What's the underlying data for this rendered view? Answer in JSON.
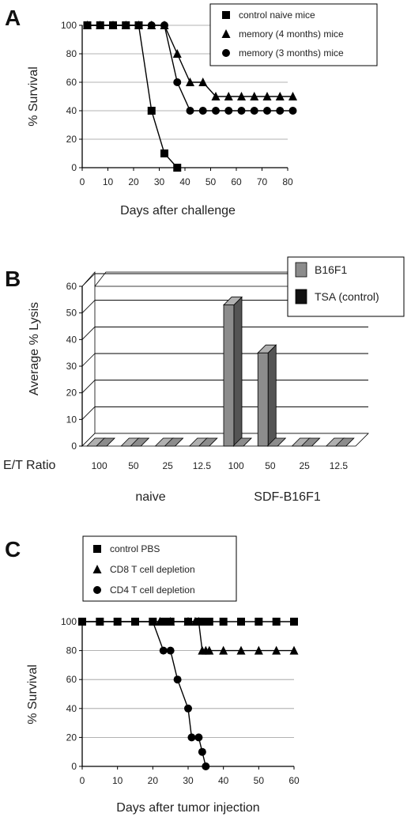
{
  "chart_data": [
    {
      "panel": "A",
      "type": "line",
      "xlabel": "Days after challenge",
      "ylabel": "% Survival",
      "xlim": [
        0,
        80
      ],
      "ylim": [
        0,
        100
      ],
      "xticks": [
        0,
        10,
        20,
        30,
        40,
        50,
        60,
        70,
        80
      ],
      "yticks": [
        0,
        20,
        40,
        60,
        80,
        100
      ],
      "legend_position": "top-right",
      "series": [
        {
          "name": "control naive mice",
          "marker": "square",
          "x": [
            2,
            7,
            12,
            17,
            22,
            27,
            32,
            37
          ],
          "y": [
            100,
            100,
            100,
            100,
            100,
            40,
            10,
            0
          ]
        },
        {
          "name": "memory (4 months) mice",
          "marker": "triangle",
          "x": [
            2,
            7,
            12,
            17,
            22,
            27,
            32,
            37,
            42,
            47,
            52,
            57,
            62,
            67,
            72,
            77,
            82
          ],
          "y": [
            100,
            100,
            100,
            100,
            100,
            100,
            100,
            80,
            60,
            60,
            50,
            50,
            50,
            50,
            50,
            50,
            50
          ]
        },
        {
          "name": "memory (3 months) mice",
          "marker": "circle",
          "x": [
            2,
            7,
            12,
            17,
            22,
            27,
            32,
            37,
            42,
            47,
            52,
            57,
            62,
            67,
            72,
            77,
            82
          ],
          "y": [
            100,
            100,
            100,
            100,
            100,
            100,
            100,
            60,
            40,
            40,
            40,
            40,
            40,
            40,
            40,
            40,
            40
          ]
        }
      ]
    },
    {
      "panel": "B",
      "type": "bar",
      "ylabel": "Average % Lysis",
      "xlabel": "E/T Ratio",
      "ylim": [
        0,
        60
      ],
      "yticks": [
        0,
        10,
        20,
        30,
        40,
        50,
        60
      ],
      "categories": [
        "100",
        "50",
        "25",
        "12.5",
        "100",
        "50",
        "25",
        "12.5"
      ],
      "groups": [
        {
          "label": "naive",
          "span": [
            0,
            3
          ]
        },
        {
          "label": "SDF-B16F1",
          "span": [
            4,
            7
          ]
        }
      ],
      "legend_position": "top-right",
      "series": [
        {
          "name": "B16F1",
          "color": "#8c8c8c",
          "values": [
            0,
            0,
            0,
            0,
            53,
            35,
            0,
            0
          ]
        },
        {
          "name": "TSA (control)",
          "color": "#111111",
          "values": [
            0,
            0,
            0,
            0,
            0,
            0,
            0,
            0
          ]
        }
      ]
    },
    {
      "panel": "C",
      "type": "line",
      "xlabel": "Days after tumor injection",
      "ylabel": "% Survival",
      "xlim": [
        0,
        60
      ],
      "ylim": [
        0,
        100
      ],
      "xticks": [
        0,
        10,
        20,
        30,
        40,
        50,
        60
      ],
      "yticks": [
        0,
        20,
        40,
        60,
        80,
        100
      ],
      "legend_position": "top",
      "series": [
        {
          "name": "control PBS",
          "marker": "square",
          "x": [
            0,
            5,
            10,
            15,
            20,
            23,
            25,
            30,
            33,
            35,
            36,
            40,
            45,
            50,
            55,
            60
          ],
          "y": [
            100,
            100,
            100,
            100,
            100,
            100,
            100,
            100,
            100,
            100,
            100,
            100,
            100,
            100,
            100,
            100
          ]
        },
        {
          "name": "CD8 T cell depletion",
          "marker": "triangle",
          "x": [
            22,
            25,
            30,
            32,
            33,
            34,
            35,
            36,
            40,
            45,
            50,
            55,
            60
          ],
          "y": [
            100,
            100,
            100,
            100,
            100,
            80,
            80,
            80,
            80,
            80,
            80,
            80,
            80
          ]
        },
        {
          "name": "CD4 T cell depletion",
          "marker": "circle",
          "x": [
            0,
            20,
            23,
            25,
            27,
            30,
            31,
            33,
            34,
            35
          ],
          "y": [
            100,
            100,
            80,
            80,
            60,
            40,
            20,
            20,
            10,
            0
          ]
        }
      ]
    }
  ]
}
